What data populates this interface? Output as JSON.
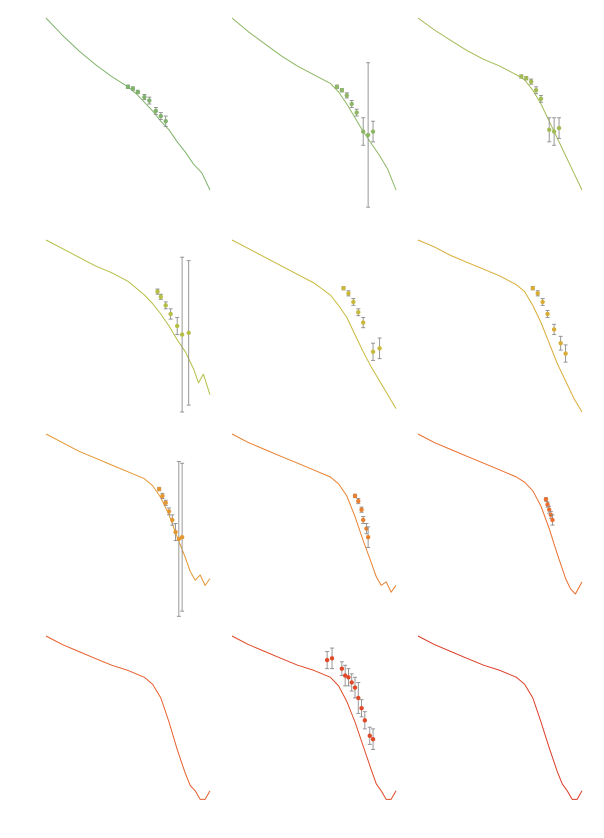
{
  "figure": {
    "rows": 4,
    "cols": 3,
    "errorbar_color": "#8c8c8c",
    "panel_colors": [
      "#7fb26a",
      "#8db765",
      "#a3bb57",
      "#b6be45",
      "#c8b83c",
      "#d9ac35",
      "#e39632",
      "#e88030",
      "#ea6d2d",
      "#e65e2b",
      "#e04a28",
      "#dc3b27"
    ]
  },
  "chart_data": [
    {
      "type": "line",
      "panel": 1,
      "curve": {
        "x": [
          0,
          0.1,
          0.2,
          0.3,
          0.4,
          0.5,
          0.55,
          0.6,
          0.65,
          0.7,
          0.75,
          0.8,
          0.85,
          0.9,
          0.95,
          1.0
        ],
        "y": [
          0,
          0.1,
          0.19,
          0.27,
          0.34,
          0.4,
          0.44,
          0.49,
          0.54,
          0.6,
          0.65,
          0.72,
          0.78,
          0.85,
          0.9,
          1.0
        ]
      },
      "points": [
        {
          "x": 0.5,
          "y": 0.4,
          "err": 0.01
        },
        {
          "x": 0.53,
          "y": 0.41,
          "err": 0.01
        },
        {
          "x": 0.56,
          "y": 0.43,
          "err": 0.01
        },
        {
          "x": 0.6,
          "y": 0.46,
          "err": 0.015
        },
        {
          "x": 0.63,
          "y": 0.48,
          "err": 0.02
        },
        {
          "x": 0.67,
          "y": 0.54,
          "err": 0.02
        },
        {
          "x": 0.7,
          "y": 0.57,
          "err": 0.02
        },
        {
          "x": 0.73,
          "y": 0.6,
          "err": 0.03
        }
      ]
    },
    {
      "type": "line",
      "panel": 2,
      "curve": {
        "x": [
          0,
          0.1,
          0.2,
          0.3,
          0.4,
          0.5,
          0.6,
          0.65,
          0.7,
          0.75,
          0.8,
          0.85,
          0.9,
          0.95,
          1.0
        ],
        "y": [
          0,
          0.08,
          0.15,
          0.22,
          0.28,
          0.33,
          0.38,
          0.43,
          0.5,
          0.58,
          0.66,
          0.73,
          0.8,
          0.88,
          1.0
        ]
      },
      "points": [
        {
          "x": 0.64,
          "y": 0.4,
          "err": 0.01
        },
        {
          "x": 0.67,
          "y": 0.42,
          "err": 0.01
        },
        {
          "x": 0.7,
          "y": 0.45,
          "err": 0.015
        },
        {
          "x": 0.73,
          "y": 0.5,
          "err": 0.02
        },
        {
          "x": 0.76,
          "y": 0.55,
          "err": 0.02
        },
        {
          "x": 0.8,
          "y": 0.66,
          "err": 0.08
        },
        {
          "x": 0.83,
          "y": 0.68,
          "err": 0.42
        },
        {
          "x": 0.86,
          "y": 0.66,
          "err": 0.06
        }
      ]
    },
    {
      "type": "line",
      "panel": 3,
      "curve": {
        "x": [
          0,
          0.1,
          0.2,
          0.3,
          0.4,
          0.5,
          0.6,
          0.65,
          0.7,
          0.75,
          0.8,
          0.85,
          0.9,
          0.95,
          1.0
        ],
        "y": [
          0,
          0.07,
          0.13,
          0.19,
          0.24,
          0.28,
          0.33,
          0.36,
          0.42,
          0.5,
          0.6,
          0.7,
          0.8,
          0.9,
          1.0
        ]
      },
      "points": [
        {
          "x": 0.63,
          "y": 0.34,
          "err": 0.01
        },
        {
          "x": 0.66,
          "y": 0.35,
          "err": 0.01
        },
        {
          "x": 0.69,
          "y": 0.37,
          "err": 0.015
        },
        {
          "x": 0.72,
          "y": 0.42,
          "err": 0.02
        },
        {
          "x": 0.75,
          "y": 0.47,
          "err": 0.02
        },
        {
          "x": 0.8,
          "y": 0.65,
          "err": 0.07
        },
        {
          "x": 0.83,
          "y": 0.66,
          "err": 0.08
        },
        {
          "x": 0.86,
          "y": 0.64,
          "err": 0.06
        }
      ]
    },
    {
      "type": "line",
      "panel": 4,
      "curve": {
        "x": [
          0,
          0.1,
          0.2,
          0.3,
          0.4,
          0.5,
          0.6,
          0.65,
          0.7,
          0.75,
          0.8,
          0.85,
          0.9,
          0.93,
          0.96,
          1.0
        ],
        "y": [
          0,
          0.05,
          0.1,
          0.15,
          0.19,
          0.24,
          0.32,
          0.37,
          0.43,
          0.5,
          0.58,
          0.65,
          0.75,
          0.83,
          0.78,
          0.9
        ]
      },
      "points": [
        {
          "x": 0.68,
          "y": 0.3,
          "err": 0.015
        },
        {
          "x": 0.7,
          "y": 0.33,
          "err": 0.015
        },
        {
          "x": 0.73,
          "y": 0.38,
          "err": 0.02
        },
        {
          "x": 0.76,
          "y": 0.43,
          "err": 0.03
        },
        {
          "x": 0.8,
          "y": 0.5,
          "err": 0.05
        },
        {
          "x": 0.83,
          "y": 0.55,
          "err": 0.45
        },
        {
          "x": 0.87,
          "y": 0.54,
          "err": 0.42
        }
      ]
    },
    {
      "type": "line",
      "panel": 5,
      "curve": {
        "x": [
          0,
          0.1,
          0.2,
          0.3,
          0.4,
          0.5,
          0.6,
          0.65,
          0.7,
          0.75,
          0.8,
          0.85,
          0.9,
          0.95,
          1.0
        ],
        "y": [
          0,
          0.05,
          0.1,
          0.15,
          0.2,
          0.25,
          0.32,
          0.38,
          0.45,
          0.55,
          0.65,
          0.74,
          0.82,
          0.9,
          0.98
        ]
      },
      "points": [
        {
          "x": 0.68,
          "y": 0.28,
          "err": 0.01
        },
        {
          "x": 0.71,
          "y": 0.31,
          "err": 0.015
        },
        {
          "x": 0.74,
          "y": 0.36,
          "err": 0.02
        },
        {
          "x": 0.77,
          "y": 0.42,
          "err": 0.02
        },
        {
          "x": 0.8,
          "y": 0.48,
          "err": 0.03
        },
        {
          "x": 0.86,
          "y": 0.65,
          "err": 0.05
        },
        {
          "x": 0.9,
          "y": 0.63,
          "err": 0.06
        }
      ]
    },
    {
      "type": "line",
      "panel": 6,
      "curve": {
        "x": [
          0,
          0.1,
          0.2,
          0.3,
          0.4,
          0.5,
          0.6,
          0.65,
          0.7,
          0.75,
          0.8,
          0.85,
          0.9,
          0.95,
          1.0
        ],
        "y": [
          0,
          0.04,
          0.09,
          0.13,
          0.17,
          0.21,
          0.26,
          0.3,
          0.38,
          0.48,
          0.6,
          0.72,
          0.82,
          0.92,
          1.0
        ]
      },
      "points": [
        {
          "x": 0.7,
          "y": 0.28,
          "err": 0.01
        },
        {
          "x": 0.73,
          "y": 0.31,
          "err": 0.015
        },
        {
          "x": 0.76,
          "y": 0.36,
          "err": 0.02
        },
        {
          "x": 0.79,
          "y": 0.43,
          "err": 0.02
        },
        {
          "x": 0.83,
          "y": 0.52,
          "err": 0.03
        },
        {
          "x": 0.87,
          "y": 0.6,
          "err": 0.04
        },
        {
          "x": 0.9,
          "y": 0.66,
          "err": 0.05
        }
      ]
    },
    {
      "type": "line",
      "panel": 7,
      "curve": {
        "x": [
          0,
          0.1,
          0.2,
          0.3,
          0.4,
          0.5,
          0.6,
          0.65,
          0.7,
          0.75,
          0.8,
          0.85,
          0.88,
          0.91,
          0.94,
          0.97,
          1.0
        ],
        "y": [
          0,
          0.05,
          0.1,
          0.14,
          0.18,
          0.22,
          0.26,
          0.3,
          0.37,
          0.47,
          0.6,
          0.72,
          0.8,
          0.85,
          0.82,
          0.88,
          0.84
        ]
      },
      "points": [
        {
          "x": 0.69,
          "y": 0.32,
          "err": 0.01
        },
        {
          "x": 0.71,
          "y": 0.36,
          "err": 0.015
        },
        {
          "x": 0.73,
          "y": 0.4,
          "err": 0.015
        },
        {
          "x": 0.75,
          "y": 0.45,
          "err": 0.02
        },
        {
          "x": 0.77,
          "y": 0.5,
          "err": 0.03
        },
        {
          "x": 0.79,
          "y": 0.57,
          "err": 0.05
        },
        {
          "x": 0.81,
          "y": 0.61,
          "err": 0.45
        },
        {
          "x": 0.83,
          "y": 0.6,
          "err": 0.43
        }
      ]
    },
    {
      "type": "line",
      "panel": 8,
      "curve": {
        "x": [
          0,
          0.1,
          0.2,
          0.3,
          0.4,
          0.5,
          0.6,
          0.65,
          0.7,
          0.75,
          0.8,
          0.85,
          0.88,
          0.91,
          0.94,
          0.97,
          1.0
        ],
        "y": [
          0,
          0.05,
          0.09,
          0.13,
          0.17,
          0.21,
          0.25,
          0.29,
          0.36,
          0.48,
          0.62,
          0.75,
          0.83,
          0.88,
          0.86,
          0.92,
          0.88
        ]
      },
      "points": [
        {
          "x": 0.75,
          "y": 0.36,
          "err": 0.01
        },
        {
          "x": 0.77,
          "y": 0.39,
          "err": 0.015
        },
        {
          "x": 0.79,
          "y": 0.44,
          "err": 0.015
        },
        {
          "x": 0.8,
          "y": 0.5,
          "err": 0.02
        },
        {
          "x": 0.82,
          "y": 0.55,
          "err": 0.03
        },
        {
          "x": 0.83,
          "y": 0.6,
          "err": 0.06
        }
      ]
    },
    {
      "type": "line",
      "panel": 9,
      "curve": {
        "x": [
          0,
          0.1,
          0.2,
          0.3,
          0.4,
          0.5,
          0.6,
          0.65,
          0.7,
          0.75,
          0.8,
          0.85,
          0.9,
          0.93,
          0.96,
          1.0
        ],
        "y": [
          0,
          0.05,
          0.09,
          0.13,
          0.17,
          0.21,
          0.25,
          0.28,
          0.33,
          0.42,
          0.55,
          0.7,
          0.84,
          0.9,
          0.93,
          0.86
        ]
      },
      "points": [
        {
          "x": 0.78,
          "y": 0.38,
          "err": 0.01
        },
        {
          "x": 0.79,
          "y": 0.41,
          "err": 0.015
        },
        {
          "x": 0.8,
          "y": 0.44,
          "err": 0.02
        },
        {
          "x": 0.81,
          "y": 0.47,
          "err": 0.02
        },
        {
          "x": 0.82,
          "y": 0.5,
          "err": 0.03
        }
      ]
    },
    {
      "type": "line",
      "panel": 10,
      "curve": {
        "x": [
          0,
          0.1,
          0.2,
          0.3,
          0.4,
          0.5,
          0.6,
          0.65,
          0.7,
          0.75,
          0.8,
          0.85,
          0.88,
          0.91,
          0.94,
          0.97,
          1.0
        ],
        "y": [
          0,
          0.05,
          0.09,
          0.13,
          0.17,
          0.2,
          0.24,
          0.28,
          0.36,
          0.5,
          0.66,
          0.8,
          0.87,
          0.9,
          0.95,
          0.95,
          0.9
        ]
      },
      "points": []
    },
    {
      "type": "line",
      "panel": 11,
      "curve": {
        "x": [
          0,
          0.1,
          0.2,
          0.3,
          0.4,
          0.5,
          0.6,
          0.65,
          0.7,
          0.75,
          0.8,
          0.85,
          0.88,
          0.91,
          0.94,
          0.97,
          1.0
        ],
        "y": [
          0,
          0.05,
          0.09,
          0.13,
          0.17,
          0.2,
          0.24,
          0.29,
          0.38,
          0.5,
          0.64,
          0.78,
          0.86,
          0.9,
          0.95,
          0.95,
          0.9
        ]
      },
      "points": [
        {
          "x": 0.58,
          "y": 0.14,
          "err": 0.05
        },
        {
          "x": 0.61,
          "y": 0.13,
          "err": 0.06
        },
        {
          "x": 0.67,
          "y": 0.19,
          "err": 0.04
        },
        {
          "x": 0.69,
          "y": 0.23,
          "err": 0.06
        },
        {
          "x": 0.71,
          "y": 0.24,
          "err": 0.05
        },
        {
          "x": 0.73,
          "y": 0.27,
          "err": 0.05
        },
        {
          "x": 0.75,
          "y": 0.3,
          "err": 0.06
        },
        {
          "x": 0.77,
          "y": 0.36,
          "err": 0.09
        },
        {
          "x": 0.79,
          "y": 0.42,
          "err": 0.05
        },
        {
          "x": 0.81,
          "y": 0.49,
          "err": 0.05
        },
        {
          "x": 0.84,
          "y": 0.58,
          "err": 0.05
        },
        {
          "x": 0.86,
          "y": 0.6,
          "err": 0.06
        }
      ]
    },
    {
      "type": "line",
      "panel": 12,
      "curve": {
        "x": [
          0,
          0.1,
          0.2,
          0.3,
          0.4,
          0.5,
          0.6,
          0.65,
          0.7,
          0.75,
          0.8,
          0.85,
          0.88,
          0.91,
          0.94,
          0.97,
          1.0
        ],
        "y": [
          0,
          0.05,
          0.09,
          0.13,
          0.17,
          0.2,
          0.24,
          0.28,
          0.36,
          0.5,
          0.65,
          0.79,
          0.86,
          0.9,
          0.95,
          0.95,
          0.9
        ]
      },
      "points": []
    }
  ]
}
